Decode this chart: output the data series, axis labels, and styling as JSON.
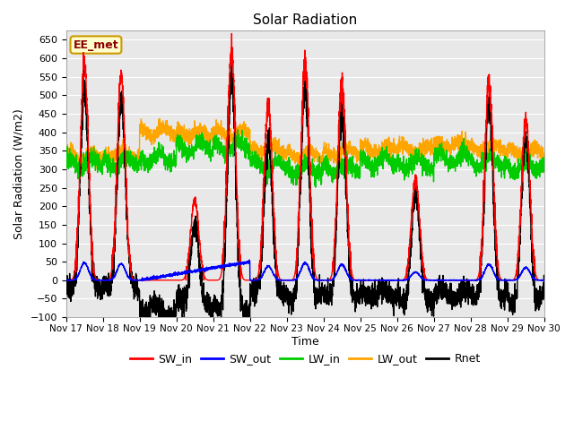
{
  "title": "Solar Radiation",
  "xlabel": "Time",
  "ylabel": "Solar Radiation (W/m2)",
  "ylim": [
    -100,
    675
  ],
  "yticks": [
    -100,
    -50,
    0,
    50,
    100,
    150,
    200,
    250,
    300,
    350,
    400,
    450,
    500,
    550,
    600,
    650
  ],
  "colors": {
    "SW_in": "#ff0000",
    "SW_out": "#0000ff",
    "LW_in": "#00cc00",
    "LW_out": "#ffa500",
    "Rnet": "#000000"
  },
  "background_color": "#ffffff",
  "plot_bg_color": "#e8e8e8",
  "watermark_text": "EE_met",
  "watermark_bg": "#ffffcc",
  "watermark_border": "#cc9900",
  "n_days": 13,
  "start_day": 17,
  "end_day": 30,
  "legend_entries": [
    "SW_in",
    "SW_out",
    "LW_in",
    "LW_out",
    "Rnet"
  ],
  "peaks_sw_in": [
    580,
    550,
    0,
    215,
    615,
    475,
    590,
    530,
    0,
    270,
    0,
    540,
    435
  ],
  "lw_in_base": [
    315,
    320,
    330,
    360,
    360,
    310,
    300,
    305,
    320,
    315,
    330,
    320,
    310
  ],
  "lw_out_base": [
    335,
    340,
    400,
    395,
    395,
    355,
    340,
    345,
    355,
    355,
    365,
    355,
    345
  ],
  "pts_per_day": 288
}
